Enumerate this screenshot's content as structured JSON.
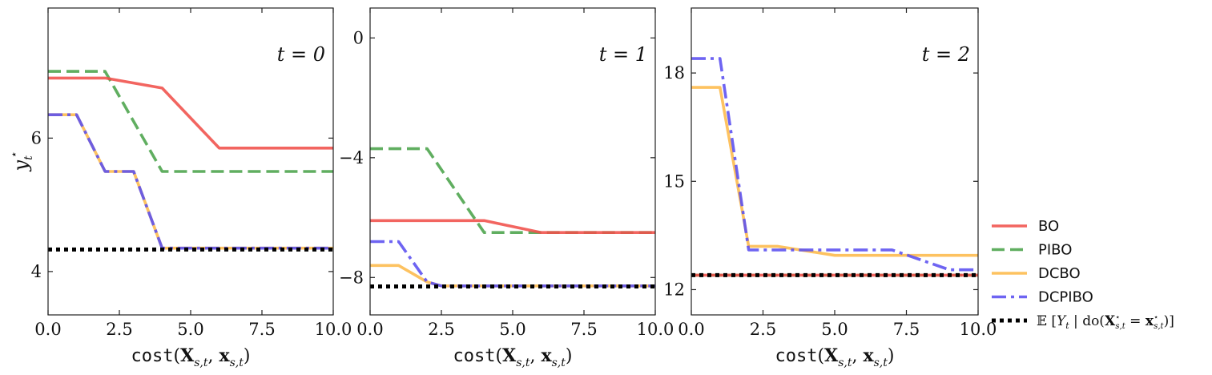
{
  "chart_data": [
    {
      "type": "line",
      "annotation": "t = 0",
      "xlabel": "cost(X_{s,t}, x_{s,t})",
      "ylabel": "y_t^⋆",
      "xlim": [
        0,
        10
      ],
      "ylim": [
        3.35,
        7.95
      ],
      "xticks": [
        0,
        2.5,
        5,
        7.5,
        10
      ],
      "xtick_labels": [
        "0.0",
        "2.5",
        "5.0",
        "7.5",
        "10.0"
      ],
      "yticks": [
        4,
        6
      ],
      "ytick_labels": [
        "4",
        "6"
      ],
      "series": [
        {
          "name": "BO",
          "x": [
            0,
            2,
            4,
            6,
            10
          ],
          "y": [
            6.9,
            6.9,
            6.75,
            5.85,
            5.85
          ]
        },
        {
          "name": "PIBO",
          "x": [
            0,
            2,
            4,
            10
          ],
          "y": [
            7.0,
            7.0,
            5.5,
            5.5
          ]
        },
        {
          "name": "DCBO",
          "x": [
            0,
            1,
            2,
            3,
            4,
            10
          ],
          "y": [
            6.35,
            6.35,
            5.5,
            5.5,
            4.35,
            4.35
          ]
        },
        {
          "name": "DCPIBO",
          "x": [
            0,
            1,
            2,
            3,
            4,
            10
          ],
          "y": [
            6.35,
            6.35,
            5.5,
            5.5,
            4.35,
            4.35
          ]
        },
        {
          "name": "E[Y_t | do(X*_{s,t} = x*_{s,t})]",
          "x": [
            0,
            10
          ],
          "y": [
            4.33,
            4.33
          ]
        }
      ]
    },
    {
      "type": "line",
      "annotation": "t = 1",
      "xlabel": "cost(X_{s,t}, x_{s,t})",
      "ylabel": "",
      "xlim": [
        0,
        10
      ],
      "ylim": [
        -9.25,
        1.0
      ],
      "xticks": [
        0,
        2.5,
        5,
        7.5,
        10
      ],
      "xtick_labels": [
        "0.0",
        "2.5",
        "5.0",
        "7.5",
        "10.0"
      ],
      "yticks": [
        0,
        -4,
        -8
      ],
      "ytick_labels": [
        "0",
        "−4",
        "−8"
      ],
      "series": [
        {
          "name": "BO",
          "x": [
            0,
            4,
            6,
            10
          ],
          "y": [
            -6.1,
            -6.1,
            -6.5,
            -6.5
          ]
        },
        {
          "name": "PIBO",
          "x": [
            0,
            2,
            4,
            10
          ],
          "y": [
            -3.7,
            -3.7,
            -6.5,
            -6.5
          ]
        },
        {
          "name": "DCBO",
          "x": [
            0,
            1,
            2,
            2.5,
            10
          ],
          "y": [
            -7.6,
            -7.6,
            -8.15,
            -8.28,
            -8.28
          ]
        },
        {
          "name": "DCPIBO",
          "x": [
            0,
            1,
            2,
            2.5,
            10
          ],
          "y": [
            -6.8,
            -6.8,
            -8.15,
            -8.28,
            -8.28
          ]
        },
        {
          "name": "E[Y_t | do(X*_{s,t} = x*_{s,t})]",
          "x": [
            0,
            10
          ],
          "y": [
            -8.3,
            -8.3
          ]
        }
      ]
    },
    {
      "type": "line",
      "annotation": "t = 2",
      "xlabel": "cost(X_{s,t}, x_{s,t})",
      "ylabel": "",
      "xlim": [
        0,
        10
      ],
      "ylim": [
        11.3,
        19.8
      ],
      "xticks": [
        0,
        2.5,
        5,
        7.5,
        10
      ],
      "xtick_labels": [
        "0.0",
        "2.5",
        "5.0",
        "7.5",
        "10.0"
      ],
      "yticks": [
        12,
        15,
        18
      ],
      "ytick_labels": [
        "12",
        "15",
        "18"
      ],
      "series": [
        {
          "name": "BO",
          "x": [
            0,
            10
          ],
          "y": [
            12.4,
            12.4
          ]
        },
        {
          "name": "PIBO",
          "x": [
            0,
            10
          ],
          "y": [
            12.4,
            12.4
          ]
        },
        {
          "name": "DCBO",
          "x": [
            0,
            1,
            2,
            3,
            5,
            7,
            10
          ],
          "y": [
            17.6,
            17.6,
            13.2,
            13.2,
            12.95,
            12.95,
            12.95
          ]
        },
        {
          "name": "DCPIBO",
          "x": [
            0,
            1,
            2,
            7,
            9,
            10
          ],
          "y": [
            18.4,
            18.4,
            13.1,
            13.1,
            12.55,
            12.55
          ]
        },
        {
          "name": "E[Y_t | do(X*_{s,t} = x*_{s,t})]",
          "x": [
            0,
            10
          ],
          "y": [
            12.4,
            12.4
          ]
        }
      ]
    }
  ],
  "styles": {
    "BO": {
      "color": "#f0504a",
      "dash": ""
    },
    "PIBO": {
      "color": "#4aa34a",
      "dash": "16 7"
    },
    "DCBO": {
      "color": "#fdb94a",
      "dash": ""
    },
    "DCPIBO": {
      "color": "#5a4ef0",
      "dash": "18 6 4 6"
    },
    "E[Y_t | do(X*_{s,t} = x*_{s,t})]": {
      "color": "#000000",
      "dash": "5 5"
    }
  },
  "legend": {
    "placement": "right, outside",
    "entries": [
      {
        "label": "BO"
      },
      {
        "label": "PIBO"
      },
      {
        "label": "DCBO"
      },
      {
        "label": "DCPIBO"
      },
      {
        "label": "𝔼 [Y_t | do(X*_{s,t} = x*_{s,t})]"
      }
    ]
  }
}
